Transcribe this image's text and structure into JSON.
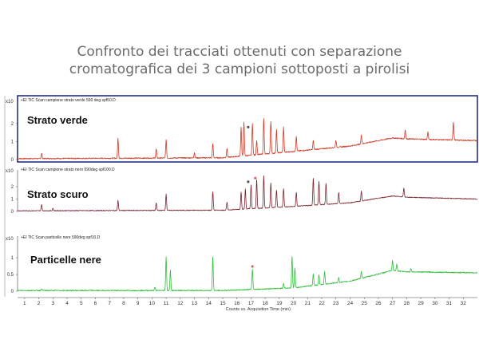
{
  "title_line1": "Confronto dei tracciati ottenuti con separazione",
  "title_line2": "cromatografica dei 3 campioni sottoposti a pirolisi",
  "chart_data": {
    "type": "line",
    "xlabel": "Counts vs. Acquisition Time (min)",
    "xlim": [
      0.5,
      33
    ],
    "x_ticks": [
      1,
      2,
      3,
      4,
      5,
      6,
      7,
      8,
      9,
      10,
      11,
      12,
      13,
      14,
      15,
      16,
      17,
      18,
      19,
      20,
      21,
      22,
      23,
      24,
      25,
      26,
      27,
      28,
      29,
      30,
      31,
      32
    ],
    "panels": [
      {
        "header": "+EI TIC Scan campione strato verde 590 deg spf50.D",
        "label": "Strato verde",
        "y_multiplier": "x10",
        "y_ticks": [
          "0",
          "1",
          "2"
        ],
        "ylim": [
          0,
          3.1
        ],
        "color": "#d23a26",
        "baseline": [
          [
            0.5,
            0.05
          ],
          [
            15,
            0.1
          ],
          [
            20,
            0.45
          ],
          [
            24,
            0.75
          ],
          [
            27,
            1.2
          ],
          [
            28,
            1.15
          ],
          [
            33,
            1.05
          ]
        ],
        "peaks": [
          [
            2.2,
            0.3
          ],
          [
            7.6,
            1.1
          ],
          [
            10.3,
            0.5
          ],
          [
            11,
            1.0
          ],
          [
            13,
            0.3
          ],
          [
            14.3,
            0.8
          ],
          [
            15.3,
            0.5
          ],
          [
            16.3,
            1.6
          ],
          [
            16.5,
            1.85
          ],
          [
            17.1,
            1.75
          ],
          [
            17.4,
            0.8
          ],
          [
            17.9,
            2.0
          ],
          [
            18.4,
            1.8
          ],
          [
            18.8,
            1.3
          ],
          [
            19.3,
            1.4
          ],
          [
            20.2,
            0.8
          ],
          [
            21.4,
            0.5
          ],
          [
            23.0,
            0.4
          ],
          [
            24.8,
            0.5
          ],
          [
            27.9,
            0.5
          ],
          [
            29.5,
            0.4
          ],
          [
            31.3,
            1.0
          ]
        ],
        "markers": [
          [
            16.8,
            1.8,
            "#555555"
          ]
        ]
      },
      {
        "header": "+EI TIC Scan campione strato nero 590deg spf100.D",
        "label": "Strato scuro",
        "y_multiplier": "x10",
        "y_ticks": [
          "0",
          "1",
          "2"
        ],
        "ylim": [
          0,
          3.1
        ],
        "color": "#7a2430",
        "baseline": [
          [
            0.5,
            0.05
          ],
          [
            15,
            0.1
          ],
          [
            20,
            0.4
          ],
          [
            24,
            0.7
          ],
          [
            27,
            1.25
          ],
          [
            28,
            1.15
          ],
          [
            33,
            1.0
          ]
        ],
        "peaks": [
          [
            2.2,
            0.5
          ],
          [
            3,
            0.2
          ],
          [
            7.6,
            0.8
          ],
          [
            10.3,
            0.6
          ],
          [
            11,
            1.3
          ],
          [
            14.3,
            1.5
          ],
          [
            15.3,
            0.6
          ],
          [
            16.3,
            1.4
          ],
          [
            16.6,
            1.6
          ],
          [
            17.0,
            1.9
          ],
          [
            17.4,
            2.3
          ],
          [
            17.9,
            2.6
          ],
          [
            18.4,
            2.0
          ],
          [
            18.8,
            1.4
          ],
          [
            19.3,
            1.5
          ],
          [
            20.2,
            1.1
          ],
          [
            21.4,
            2.2
          ],
          [
            21.8,
            1.9
          ],
          [
            22.3,
            1.7
          ],
          [
            23.2,
            0.9
          ],
          [
            24.8,
            0.8
          ],
          [
            27.8,
            0.7
          ]
        ],
        "markers": [
          [
            16.8,
            2.4,
            "#555555"
          ],
          [
            17.3,
            2.7,
            "#e06060"
          ]
        ]
      },
      {
        "header": "+EI TIC Scan particelle nere 590deg spf10.D",
        "label": "Particelle nere",
        "y_multiplier": "x10",
        "y_ticks": [
          "0",
          "0.5",
          "1"
        ],
        "ylim": [
          0,
          1.55
        ],
        "color": "#2fbf3a",
        "baseline": [
          [
            0.5,
            0.02
          ],
          [
            15,
            0.02
          ],
          [
            20,
            0.1
          ],
          [
            24,
            0.3
          ],
          [
            27,
            0.62
          ],
          [
            28,
            0.58
          ],
          [
            33,
            0.55
          ]
        ],
        "peaks": [
          [
            2.2,
            0.05
          ],
          [
            10.2,
            0.1
          ],
          [
            11,
            1.0
          ],
          [
            11.3,
            0.6
          ],
          [
            14.3,
            1.0
          ],
          [
            17.1,
            0.6
          ],
          [
            19.3,
            0.15
          ],
          [
            19.9,
            0.95
          ],
          [
            20.1,
            0.6
          ],
          [
            21.4,
            0.35
          ],
          [
            21.8,
            0.3
          ],
          [
            22.2,
            0.4
          ],
          [
            23.2,
            0.15
          ],
          [
            24.8,
            0.2
          ],
          [
            27.0,
            0.3
          ],
          [
            27.3,
            0.2
          ],
          [
            28.3,
            0.1
          ]
        ],
        "markers": [
          [
            17.1,
            0.74,
            "#e06060"
          ]
        ]
      }
    ]
  }
}
